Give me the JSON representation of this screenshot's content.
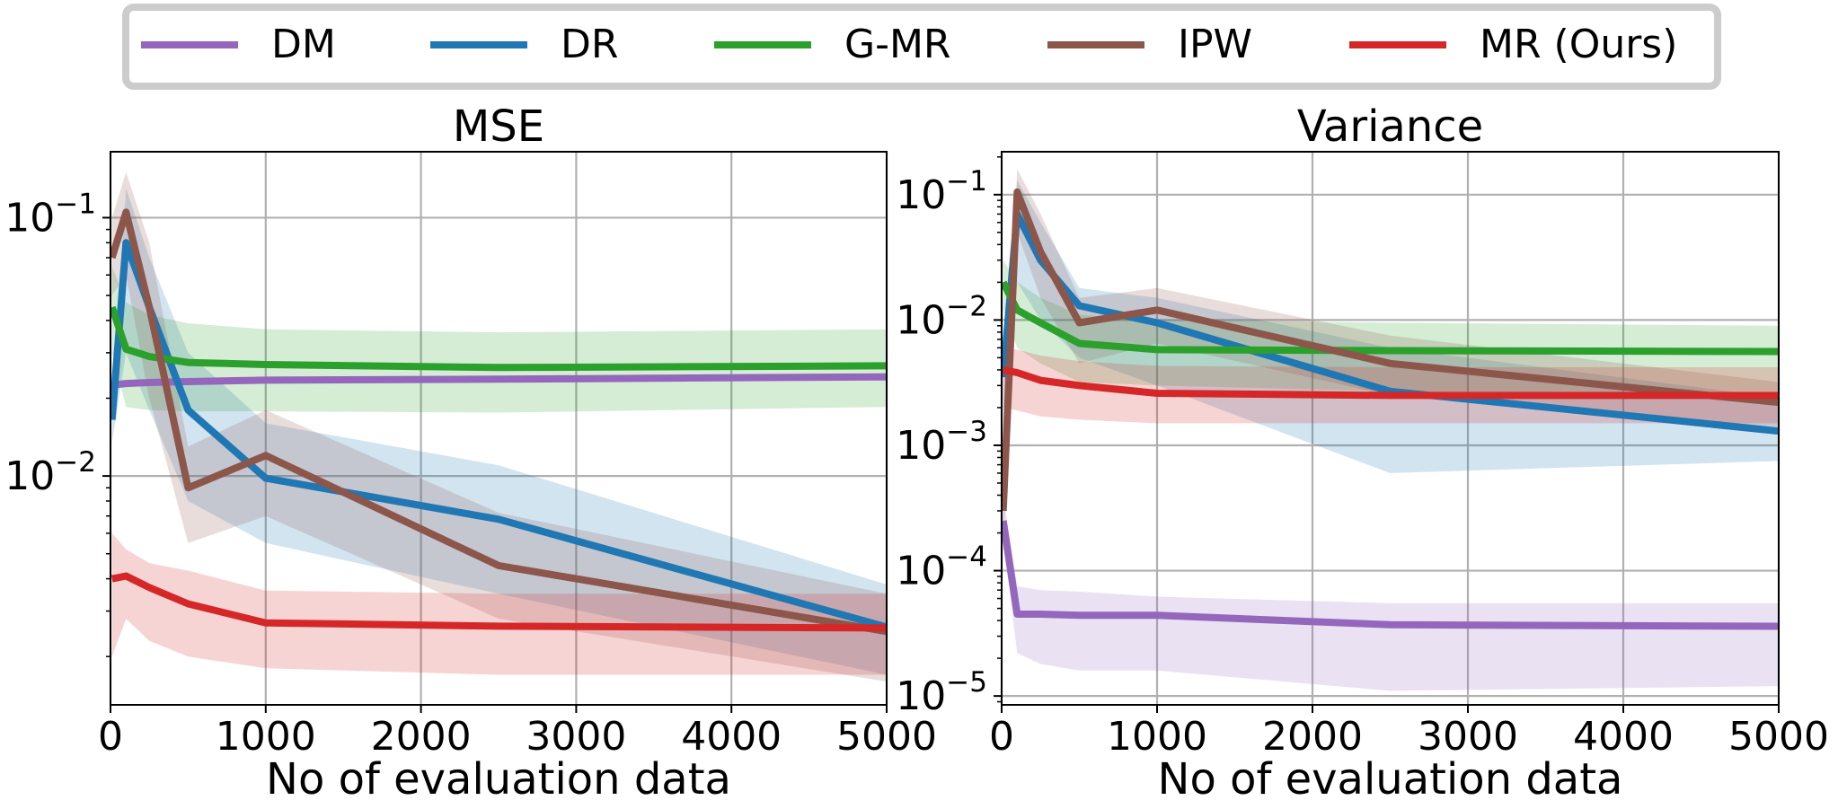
{
  "legend": {
    "placement": "top-center",
    "items": [
      {
        "label": "DM",
        "color": "#9467bd"
      },
      {
        "label": "DR",
        "color": "#1f77b4"
      },
      {
        "label": "G-MR",
        "color": "#2ca02c"
      },
      {
        "label": "IPW",
        "color": "#8c564b"
      },
      {
        "label": "MR (Ours)",
        "color": "#d62728"
      }
    ]
  },
  "chart_data": [
    {
      "type": "line",
      "title": "MSE",
      "xlabel": "No of evaluation data",
      "ylabel": "",
      "xlim": [
        0,
        5000
      ],
      "ylim": [
        0.0013,
        0.18
      ],
      "yscale": "log",
      "grid": true,
      "xticks": [
        0,
        1000,
        2000,
        3000,
        4000,
        5000
      ],
      "xtick_labels": [
        "0",
        "1000",
        "2000",
        "3000",
        "4000",
        "5000"
      ],
      "yticks": [
        0.01,
        0.1
      ],
      "ytick_labels": [
        [
          "10",
          "−2"
        ],
        [
          "10",
          "−1"
        ]
      ],
      "series": [
        {
          "name": "DM",
          "color": "#9467bd",
          "x": [
            10,
            100,
            250,
            500,
            1000,
            2500,
            5000
          ],
          "y": [
            0.0225,
            0.0228,
            0.023,
            0.0232,
            0.0235,
            0.0237,
            0.0242
          ],
          "lower": [
            0.0222,
            0.0225,
            0.0227,
            0.0229,
            0.0232,
            0.0234,
            0.0239
          ],
          "upper": [
            0.0228,
            0.0231,
            0.0233,
            0.0235,
            0.0238,
            0.024,
            0.0245
          ]
        },
        {
          "name": "DR",
          "color": "#1f77b4",
          "x": [
            10,
            100,
            250,
            500,
            1000,
            2500,
            5000
          ],
          "y": [
            0.0165,
            0.08,
            0.045,
            0.018,
            0.0098,
            0.0068,
            0.0026
          ],
          "lower": [
            0.0135,
            0.03,
            0.018,
            0.008,
            0.0055,
            0.0035,
            0.0017
          ],
          "upper": [
            0.021,
            0.13,
            0.07,
            0.03,
            0.016,
            0.011,
            0.0038
          ]
        },
        {
          "name": "G-MR",
          "color": "#2ca02c",
          "x": [
            10,
            100,
            250,
            500,
            1000,
            2500,
            5000
          ],
          "y": [
            0.045,
            0.031,
            0.029,
            0.0275,
            0.027,
            0.0263,
            0.0267
          ],
          "lower": [
            0.03,
            0.0185,
            0.018,
            0.0178,
            0.0178,
            0.0176,
            0.0185
          ],
          "upper": [
            0.065,
            0.047,
            0.042,
            0.039,
            0.037,
            0.036,
            0.037
          ]
        },
        {
          "name": "IPW",
          "color": "#8c564b",
          "x": [
            10,
            100,
            250,
            500,
            1000,
            2500,
            5000
          ],
          "y": [
            0.07,
            0.105,
            0.045,
            0.009,
            0.012,
            0.0045,
            0.0025
          ],
          "lower": [
            0.05,
            0.06,
            0.02,
            0.0055,
            0.007,
            0.0028,
            0.0016
          ],
          "upper": [
            0.1,
            0.15,
            0.08,
            0.013,
            0.018,
            0.0072,
            0.0035
          ]
        },
        {
          "name": "MR (Ours)",
          "color": "#d62728",
          "x": [
            10,
            100,
            250,
            500,
            1000,
            2500,
            5000
          ],
          "y": [
            0.004,
            0.0041,
            0.0037,
            0.0032,
            0.0027,
            0.00262,
            0.00258
          ],
          "lower": [
            0.002,
            0.0028,
            0.0023,
            0.002,
            0.0018,
            0.0017,
            0.0017
          ],
          "upper": [
            0.006,
            0.0052,
            0.0046,
            0.0043,
            0.0036,
            0.0035,
            0.0035
          ]
        }
      ]
    },
    {
      "type": "line",
      "title": "Variance",
      "xlabel": "No of evaluation data",
      "ylabel": "",
      "xlim": [
        0,
        5000
      ],
      "ylim": [
        8.5e-06,
        0.22
      ],
      "yscale": "log",
      "grid": true,
      "xticks": [
        0,
        1000,
        2000,
        3000,
        4000,
        5000
      ],
      "xtick_labels": [
        "0",
        "1000",
        "2000",
        "3000",
        "4000",
        "5000"
      ],
      "yticks": [
        1e-05,
        0.0001,
        0.001,
        0.01,
        0.1
      ],
      "ytick_labels": [
        [
          "10",
          "−5"
        ],
        [
          "10",
          "−4"
        ],
        [
          "10",
          "−3"
        ],
        [
          "10",
          "−2"
        ],
        [
          "10",
          "−1"
        ]
      ],
      "series": [
        {
          "name": "DM",
          "color": "#9467bd",
          "x": [
            10,
            100,
            250,
            500,
            1000,
            2500,
            5000
          ],
          "y": [
            0.00025,
            4.5e-05,
            4.5e-05,
            4.4e-05,
            4.4e-05,
            3.7e-05,
            3.6e-05
          ],
          "lower": [
            0.00018,
            2.2e-05,
            1.8e-05,
            1.6e-05,
            1.6e-05,
            1.1e-05,
            1.2e-05
          ],
          "upper": [
            0.0004,
            7.5e-05,
            7e-05,
            6.8e-05,
            6.2e-05,
            5.5e-05,
            5.5e-05
          ]
        },
        {
          "name": "DR",
          "color": "#1f77b4",
          "x": [
            10,
            100,
            250,
            500,
            1000,
            2500,
            5000
          ],
          "y": [
            0.0035,
            0.07,
            0.03,
            0.013,
            0.0095,
            0.0027,
            0.0013
          ],
          "lower": [
            0.001,
            0.02,
            0.01,
            0.005,
            0.003,
            0.0006,
            0.00075
          ],
          "upper": [
            0.006,
            0.13,
            0.06,
            0.018,
            0.015,
            0.006,
            0.0024
          ]
        },
        {
          "name": "G-MR",
          "color": "#2ca02c",
          "x": [
            10,
            100,
            250,
            500,
            1000,
            2500,
            5000
          ],
          "y": [
            0.02,
            0.012,
            0.0095,
            0.0065,
            0.0058,
            0.0057,
            0.0056
          ],
          "lower": [
            0.012,
            0.006,
            0.0045,
            0.0032,
            0.003,
            0.0027,
            0.0027
          ],
          "upper": [
            0.03,
            0.02,
            0.015,
            0.011,
            0.01,
            0.0095,
            0.009
          ]
        },
        {
          "name": "IPW",
          "color": "#8c564b",
          "x": [
            10,
            100,
            250,
            500,
            1000,
            2500,
            5000
          ],
          "y": [
            0.0003,
            0.105,
            0.035,
            0.0095,
            0.012,
            0.0045,
            0.0022
          ],
          "lower": [
            0.00015,
            0.05,
            0.015,
            0.0045,
            0.0065,
            0.0025,
            0.0014
          ],
          "upper": [
            0.0006,
            0.16,
            0.07,
            0.015,
            0.018,
            0.0075,
            0.0032
          ]
        },
        {
          "name": "MR (Ours)",
          "color": "#d62728",
          "x": [
            10,
            100,
            250,
            500,
            1000,
            2500,
            5000
          ],
          "y": [
            0.004,
            0.0038,
            0.0033,
            0.003,
            0.0026,
            0.0025,
            0.0025
          ],
          "lower": [
            0.002,
            0.0019,
            0.0017,
            0.0016,
            0.0015,
            0.0015,
            0.0015
          ],
          "upper": [
            0.006,
            0.0058,
            0.0052,
            0.0047,
            0.0043,
            0.0042,
            0.0042
          ]
        }
      ]
    }
  ]
}
